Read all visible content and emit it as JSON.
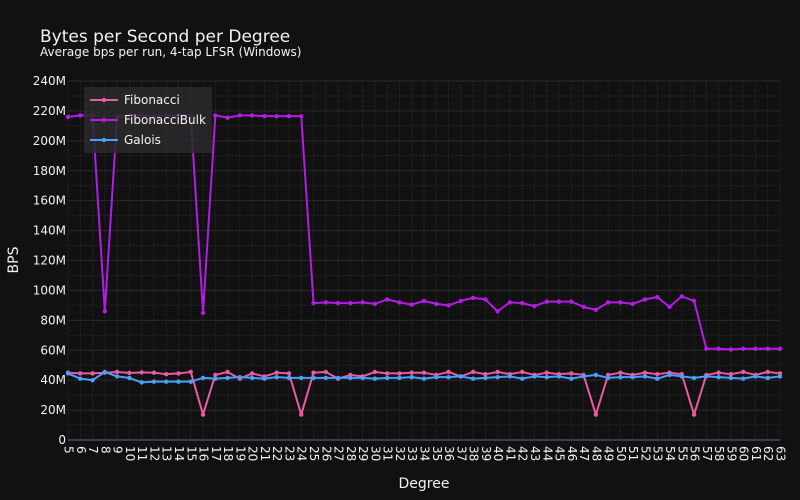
{
  "chart_data": {
    "type": "line",
    "title": "Bytes per Second per Degree",
    "subtitle": "Average bps per run, 4-tap LFSR (Windows)",
    "xlabel": "Degree",
    "ylabel": "BPS",
    "ylim": [
      0,
      240000000
    ],
    "yticks": [
      {
        "value": 0,
        "label": "0"
      },
      {
        "value": 20000000,
        "label": "20M"
      },
      {
        "value": 40000000,
        "label": "40M"
      },
      {
        "value": 60000000,
        "label": "60M"
      },
      {
        "value": 80000000,
        "label": "80M"
      },
      {
        "value": 100000000,
        "label": "100M"
      },
      {
        "value": 120000000,
        "label": "120M"
      },
      {
        "value": 140000000,
        "label": "140M"
      },
      {
        "value": 160000000,
        "label": "160M"
      },
      {
        "value": 180000000,
        "label": "180M"
      },
      {
        "value": 200000000,
        "label": "200M"
      },
      {
        "value": 220000000,
        "label": "220M"
      },
      {
        "value": 240000000,
        "label": "240M"
      }
    ],
    "x": [
      5,
      6,
      7,
      8,
      9,
      10,
      11,
      12,
      13,
      14,
      15,
      16,
      17,
      18,
      19,
      20,
      21,
      22,
      23,
      24,
      25,
      26,
      27,
      28,
      29,
      30,
      31,
      32,
      33,
      34,
      35,
      36,
      37,
      38,
      39,
      40,
      41,
      42,
      43,
      44,
      45,
      46,
      47,
      48,
      49,
      50,
      51,
      52,
      53,
      54,
      55,
      56,
      57,
      58,
      59,
      60,
      61,
      62,
      63
    ],
    "grid": true,
    "legend_position": "top-left",
    "series": [
      {
        "name": "Fibonacci",
        "color": "#ee5aa0",
        "values": [
          45000000,
          44500000,
          44500000,
          45000000,
          45500000,
          44800000,
          45200000,
          45000000,
          44000000,
          44500000,
          45500000,
          17000000,
          43500000,
          45500000,
          41000000,
          44500000,
          42500000,
          45000000,
          44500000,
          17000000,
          45000000,
          45500000,
          41000000,
          43500000,
          42500000,
          45500000,
          44500000,
          44500000,
          45000000,
          45000000,
          43500000,
          45500000,
          42500000,
          45500000,
          44000000,
          45500000,
          44000000,
          45500000,
          43500000,
          45000000,
          44000000,
          44500000,
          43500000,
          17000000,
          43500000,
          45000000,
          43500000,
          45000000,
          44000000,
          45000000,
          44000000,
          17000000,
          43500000,
          45000000,
          44000000,
          45500000,
          43500000,
          45500000,
          44500000
        ]
      },
      {
        "name": "FibonacciBulk",
        "color": "#b41ce6",
        "values": [
          216000000,
          217000000,
          217000000,
          86000000,
          216000000,
          217000000,
          217000000,
          216500000,
          217000000,
          217000000,
          217000000,
          85000000,
          217000000,
          215500000,
          217000000,
          217000000,
          216500000,
          216500000,
          216500000,
          216500000,
          91500000,
          92000000,
          91500000,
          91500000,
          92000000,
          91000000,
          94000000,
          92000000,
          90500000,
          93000000,
          91000000,
          90000000,
          93000000,
          95000000,
          94000000,
          86000000,
          92000000,
          91500000,
          89500000,
          92500000,
          92500000,
          92500000,
          89000000,
          87000000,
          92000000,
          92000000,
          91000000,
          94000000,
          95500000,
          89000000,
          96000000,
          93000000,
          61000000,
          61000000,
          60500000,
          61000000,
          61000000,
          61000000,
          61000000
        ]
      },
      {
        "name": "Galois",
        "color": "#4aa0ff",
        "values": [
          44500000,
          41000000,
          40000000,
          45500000,
          42500000,
          41500000,
          38500000,
          39000000,
          39000000,
          39000000,
          39000000,
          41500000,
          41000000,
          41500000,
          42000000,
          41500000,
          41000000,
          42000000,
          41500000,
          41500000,
          41500000,
          41500000,
          41500000,
          41500000,
          41500000,
          41000000,
          41500000,
          41500000,
          42000000,
          41000000,
          42000000,
          42000000,
          42500000,
          41000000,
          41500000,
          42000000,
          42500000,
          41000000,
          42500000,
          42000000,
          42500000,
          41000000,
          42500000,
          43500000,
          41500000,
          42000000,
          42000000,
          42500000,
          41000000,
          43500000,
          42500000,
          41500000,
          42500000,
          42000000,
          41500000,
          41000000,
          42500000,
          41500000,
          42500000
        ]
      }
    ]
  }
}
